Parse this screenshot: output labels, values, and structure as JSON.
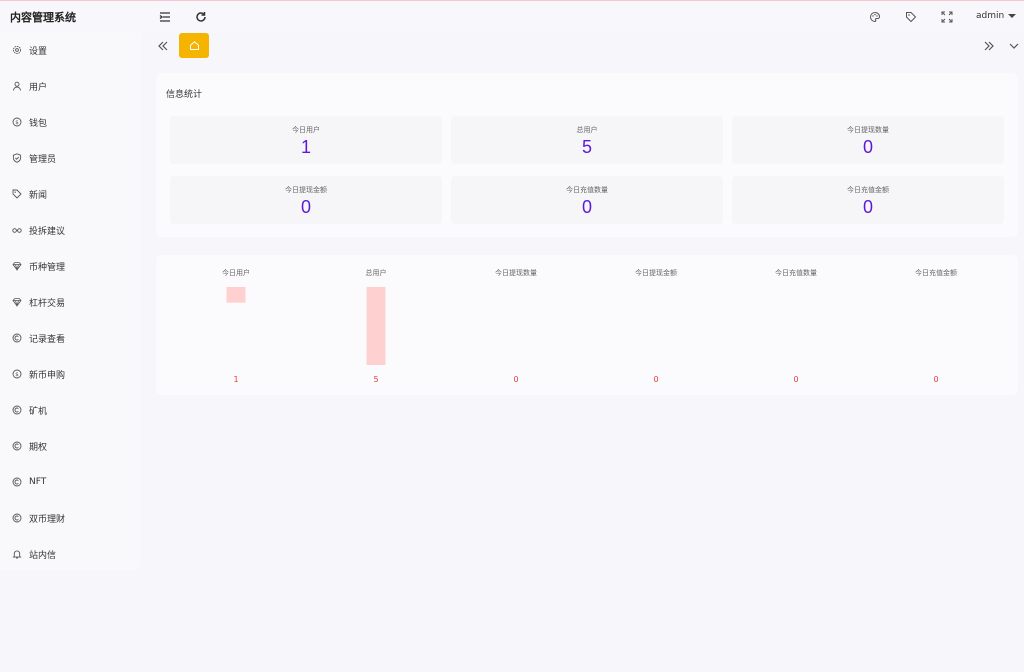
{
  "app": {
    "title": "内容管理系统"
  },
  "header": {
    "user": "admin",
    "icons": [
      "menu-collapse-icon",
      "refresh-icon",
      "palette-icon",
      "tag-icon",
      "fullscreen-icon"
    ]
  },
  "sidebar": {
    "items": [
      {
        "label": "设置",
        "icon": "gear-icon"
      },
      {
        "label": "用户",
        "icon": "user-icon"
      },
      {
        "label": "钱包",
        "icon": "dollar-circle-icon"
      },
      {
        "label": "管理员",
        "icon": "shield-icon"
      },
      {
        "label": "新闻",
        "icon": "tag-icon"
      },
      {
        "label": "投拆建议",
        "icon": "glasses-icon"
      },
      {
        "label": "币种管理",
        "icon": "diamond-icon"
      },
      {
        "label": "杠杆交易",
        "icon": "diamond-icon"
      },
      {
        "label": "记录查看",
        "icon": "copyright-circle-icon"
      },
      {
        "label": "新币申购",
        "icon": "dollar-circle-icon"
      },
      {
        "label": "矿机",
        "icon": "copyright-circle-icon"
      },
      {
        "label": "期权",
        "icon": "copyright-circle-icon"
      },
      {
        "label": "NFT",
        "icon": "copyright-circle-icon"
      },
      {
        "label": "双币理财",
        "icon": "copyright-circle-icon"
      },
      {
        "label": "站内信",
        "icon": "bell-icon"
      }
    ]
  },
  "tabs": {
    "home_icon": "home-icon",
    "accent": "#f5b400"
  },
  "stats": {
    "title": "信息统计",
    "items": [
      {
        "label": "今日用户",
        "value": "1"
      },
      {
        "label": "总用户",
        "value": "5"
      },
      {
        "label": "今日提现数量",
        "value": "0"
      },
      {
        "label": "今日提现金额",
        "value": "0"
      },
      {
        "label": "今日充值数量",
        "value": "0"
      },
      {
        "label": "今日充值金额",
        "value": "0"
      }
    ],
    "value_color": "#5a1bd6"
  },
  "chart_data": {
    "type": "bar",
    "categories": [
      "今日用户",
      "总用户",
      "今日提现数量",
      "今日提现金额",
      "今日充值数量",
      "今日充值金额"
    ],
    "values": [
      1,
      5,
      0,
      0,
      0,
      0
    ],
    "title": "",
    "xlabel": "",
    "ylabel": "",
    "ylim": [
      0,
      5
    ],
    "bar_color": "#ffd0d0",
    "label_color": "#e23b3b",
    "grid": false
  }
}
